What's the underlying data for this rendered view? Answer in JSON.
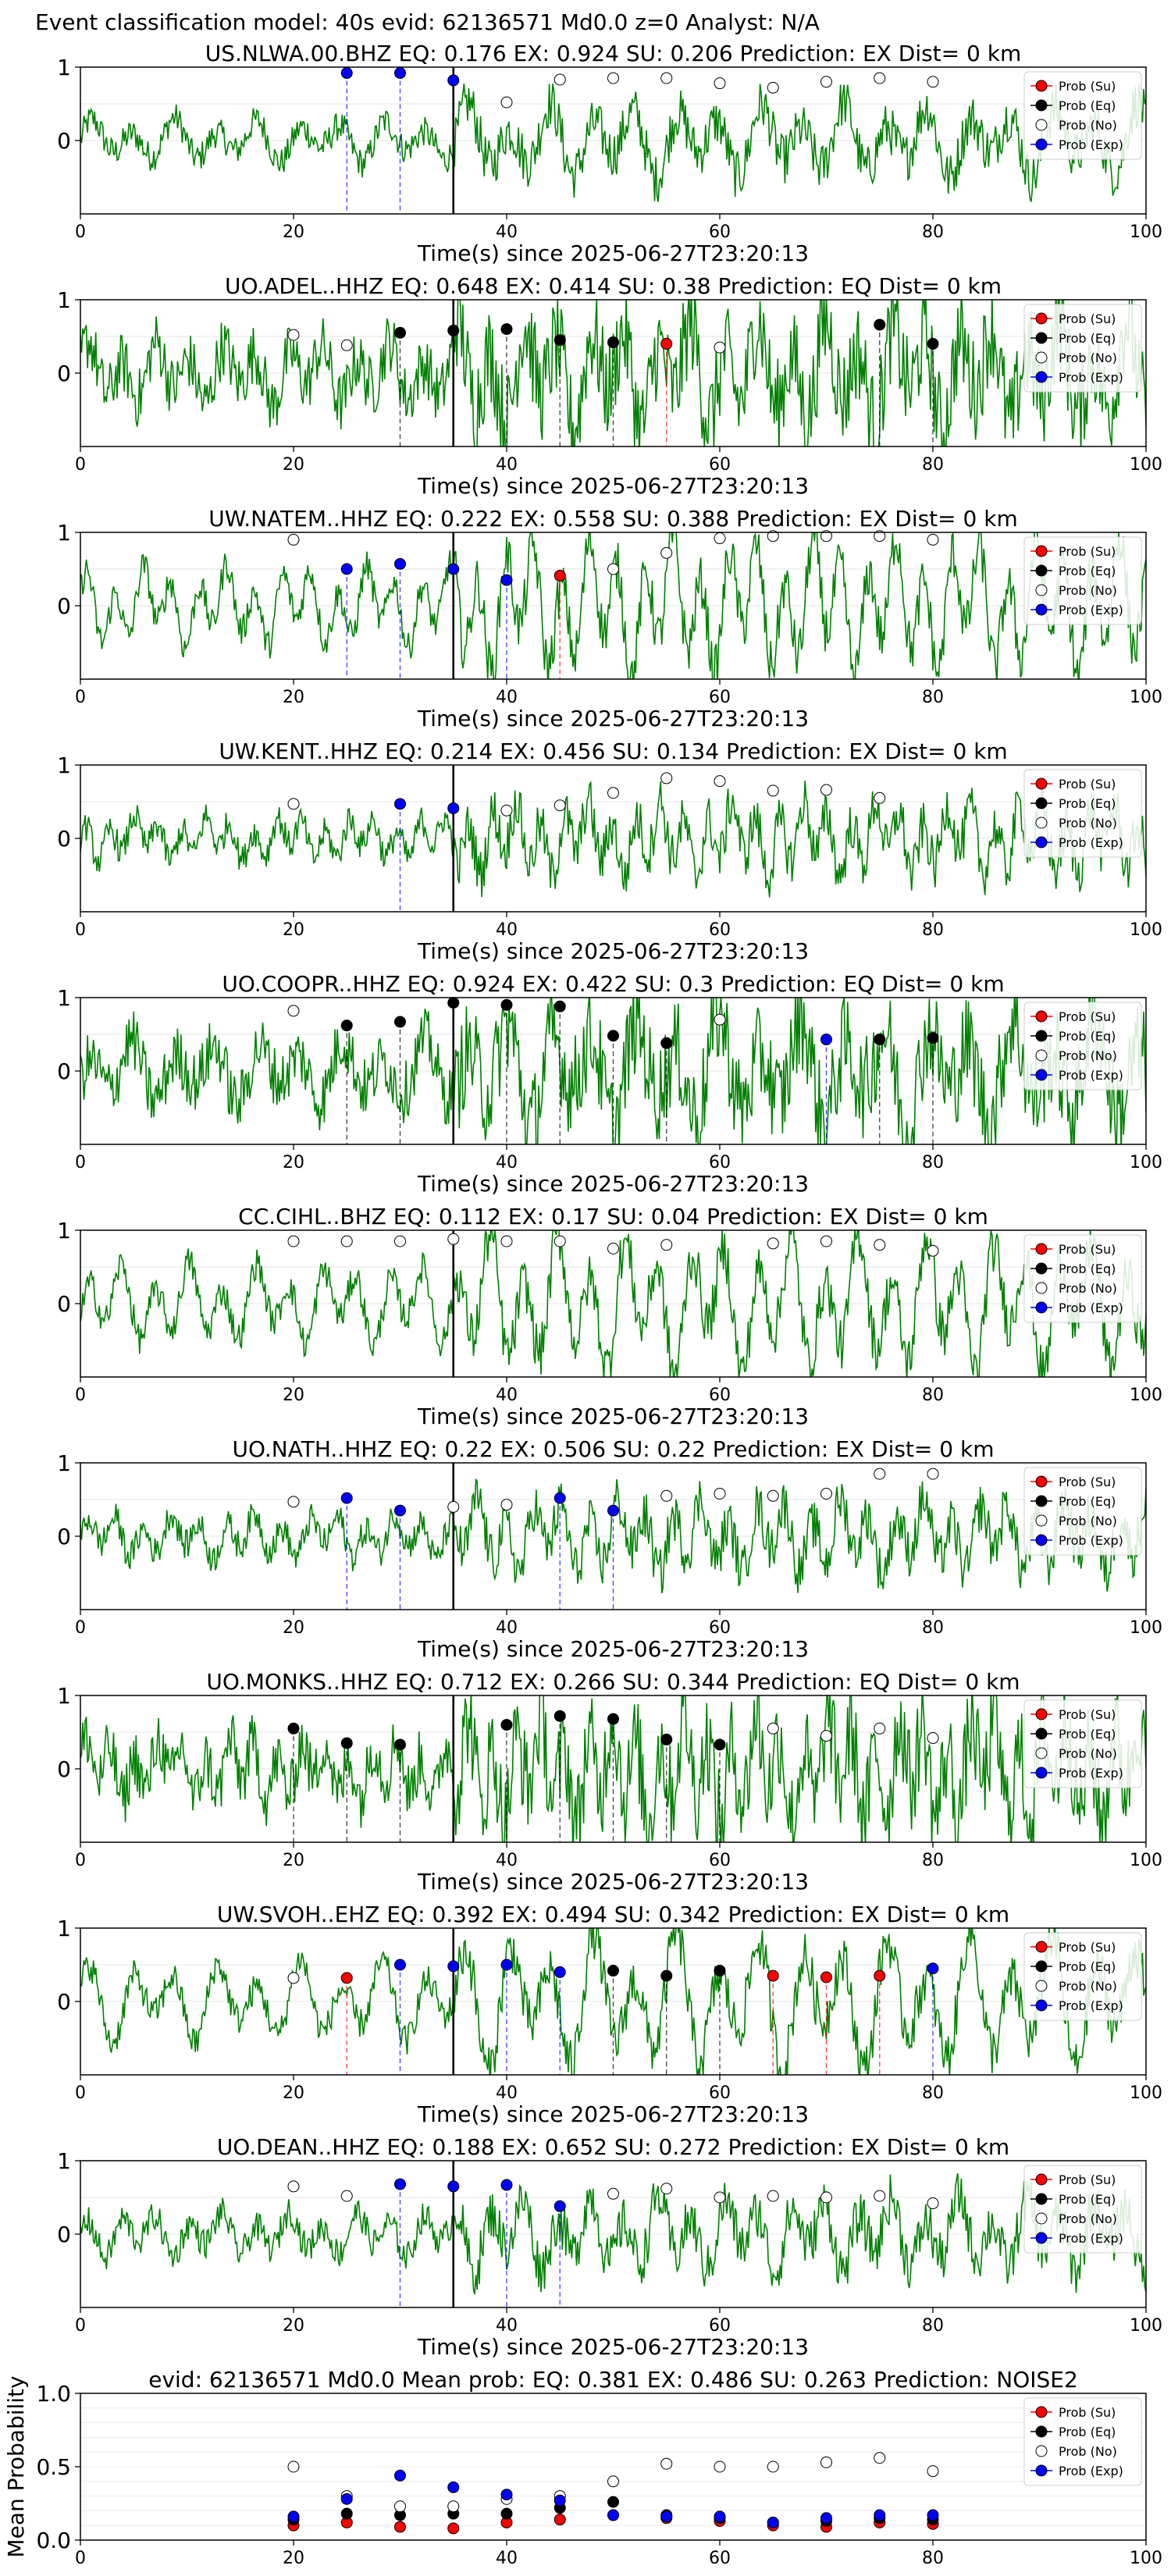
{
  "suptitle": "Event classification model: 40s evid: 62136571 Md0.0 z=0 Analyst: N/A",
  "colors": {
    "waveform": "#008000",
    "su": "#ff0000",
    "eq": "#000000",
    "no": "#ffffff",
    "exp": "#0000ff",
    "pick_line": "#000000"
  },
  "legend_labels": [
    "Prob (Su)",
    "Prob (Eq)",
    "Prob (No)",
    "Prob (Exp)"
  ],
  "xlabel": "Time(s) since 2025-06-27T23:20:13",
  "chart_data": [
    {
      "type": "scatter",
      "title": "US.NLWA.00.BHZ   EQ: 0.176   EX: 0.924   SU: 0.206   Prediction: EX    Dist= 0 km",
      "xlabel": "Time(s) since 2025-06-27T23:20:13",
      "xlim": [
        0,
        100
      ],
      "ylim": [
        -1,
        1
      ],
      "xticks": [
        0,
        20,
        40,
        60,
        80,
        100
      ],
      "yticks": [
        0,
        1
      ],
      "pick_time": 35,
      "legend": "upper right",
      "points": [
        {
          "x": 25,
          "y": 0.92,
          "cls": "exp"
        },
        {
          "x": 30,
          "y": 0.92,
          "cls": "exp"
        },
        {
          "x": 35,
          "y": 0.82,
          "cls": "exp"
        },
        {
          "x": 40,
          "y": 0.52,
          "cls": "no"
        },
        {
          "x": 45,
          "y": 0.83,
          "cls": "no"
        },
        {
          "x": 50,
          "y": 0.85,
          "cls": "no"
        },
        {
          "x": 55,
          "y": 0.85,
          "cls": "no"
        },
        {
          "x": 60,
          "y": 0.78,
          "cls": "no"
        },
        {
          "x": 65,
          "y": 0.72,
          "cls": "no"
        },
        {
          "x": 70,
          "y": 0.8,
          "cls": "no"
        },
        {
          "x": 75,
          "y": 0.85,
          "cls": "no"
        },
        {
          "x": 80,
          "y": 0.8,
          "cls": "no"
        }
      ]
    },
    {
      "type": "scatter",
      "title": "UO.ADEL..HHZ   EQ: 0.648   EX: 0.414   SU: 0.38   Prediction: EQ    Dist= 0 km",
      "xlabel": "Time(s) since 2025-06-27T23:20:13",
      "xlim": [
        0,
        100
      ],
      "ylim": [
        -1,
        1
      ],
      "xticks": [
        0,
        20,
        40,
        60,
        80,
        100
      ],
      "yticks": [
        0,
        1
      ],
      "pick_time": 35,
      "legend": "upper right",
      "points": [
        {
          "x": 20,
          "y": 0.52,
          "cls": "no"
        },
        {
          "x": 25,
          "y": 0.38,
          "cls": "no"
        },
        {
          "x": 30,
          "y": 0.55,
          "cls": "eq"
        },
        {
          "x": 35,
          "y": 0.58,
          "cls": "eq"
        },
        {
          "x": 40,
          "y": 0.6,
          "cls": "eq"
        },
        {
          "x": 45,
          "y": 0.45,
          "cls": "eq"
        },
        {
          "x": 50,
          "y": 0.42,
          "cls": "eq"
        },
        {
          "x": 55,
          "y": 0.4,
          "cls": "su"
        },
        {
          "x": 60,
          "y": 0.35,
          "cls": "no"
        },
        {
          "x": 75,
          "y": 0.66,
          "cls": "eq"
        },
        {
          "x": 80,
          "y": 0.4,
          "cls": "eq"
        }
      ]
    },
    {
      "type": "scatter",
      "title": "UW.NATEM..HHZ   EQ: 0.222   EX: 0.558   SU: 0.388   Prediction: EX    Dist= 0 km",
      "xlabel": "Time(s) since 2025-06-27T23:20:13",
      "xlim": [
        0,
        100
      ],
      "ylim": [
        -1,
        1
      ],
      "xticks": [
        0,
        20,
        40,
        60,
        80,
        100
      ],
      "yticks": [
        0,
        1
      ],
      "pick_time": 35,
      "legend": "upper right",
      "points": [
        {
          "x": 20,
          "y": 0.9,
          "cls": "no"
        },
        {
          "x": 25,
          "y": 0.5,
          "cls": "exp"
        },
        {
          "x": 30,
          "y": 0.57,
          "cls": "exp"
        },
        {
          "x": 35,
          "y": 0.5,
          "cls": "exp"
        },
        {
          "x": 40,
          "y": 0.35,
          "cls": "exp"
        },
        {
          "x": 45,
          "y": 0.41,
          "cls": "su"
        },
        {
          "x": 50,
          "y": 0.5,
          "cls": "no"
        },
        {
          "x": 55,
          "y": 0.72,
          "cls": "no"
        },
        {
          "x": 60,
          "y": 0.92,
          "cls": "no"
        },
        {
          "x": 65,
          "y": 0.95,
          "cls": "no"
        },
        {
          "x": 70,
          "y": 0.95,
          "cls": "no"
        },
        {
          "x": 75,
          "y": 0.95,
          "cls": "no"
        },
        {
          "x": 80,
          "y": 0.9,
          "cls": "no"
        }
      ]
    },
    {
      "type": "scatter",
      "title": "UW.KENT..HHZ   EQ: 0.214   EX: 0.456   SU: 0.134   Prediction: EX    Dist= 0 km",
      "xlabel": "Time(s) since 2025-06-27T23:20:13",
      "xlim": [
        0,
        100
      ],
      "ylim": [
        -1,
        1
      ],
      "xticks": [
        0,
        20,
        40,
        60,
        80,
        100
      ],
      "yticks": [
        0,
        1
      ],
      "pick_time": 35,
      "legend": "upper right",
      "points": [
        {
          "x": 20,
          "y": 0.47,
          "cls": "no"
        },
        {
          "x": 30,
          "y": 0.47,
          "cls": "exp"
        },
        {
          "x": 35,
          "y": 0.41,
          "cls": "exp"
        },
        {
          "x": 40,
          "y": 0.38,
          "cls": "no"
        },
        {
          "x": 45,
          "y": 0.45,
          "cls": "no"
        },
        {
          "x": 50,
          "y": 0.62,
          "cls": "no"
        },
        {
          "x": 55,
          "y": 0.82,
          "cls": "no"
        },
        {
          "x": 60,
          "y": 0.78,
          "cls": "no"
        },
        {
          "x": 65,
          "y": 0.65,
          "cls": "no"
        },
        {
          "x": 70,
          "y": 0.66,
          "cls": "no"
        },
        {
          "x": 75,
          "y": 0.55,
          "cls": "no"
        }
      ]
    },
    {
      "type": "scatter",
      "title": "UO.COOPR..HHZ   EQ: 0.924   EX: 0.422   SU: 0.3   Prediction: EQ    Dist= 0 km",
      "xlabel": "Time(s) since 2025-06-27T23:20:13",
      "xlim": [
        0,
        100
      ],
      "ylim": [
        -1,
        1
      ],
      "xticks": [
        0,
        20,
        40,
        60,
        80,
        100
      ],
      "yticks": [
        0,
        1
      ],
      "pick_time": 35,
      "legend": "upper right",
      "points": [
        {
          "x": 20,
          "y": 0.82,
          "cls": "no"
        },
        {
          "x": 25,
          "y": 0.62,
          "cls": "eq"
        },
        {
          "x": 30,
          "y": 0.67,
          "cls": "eq"
        },
        {
          "x": 35,
          "y": 0.93,
          "cls": "eq"
        },
        {
          "x": 40,
          "y": 0.9,
          "cls": "eq"
        },
        {
          "x": 45,
          "y": 0.88,
          "cls": "eq"
        },
        {
          "x": 50,
          "y": 0.48,
          "cls": "eq"
        },
        {
          "x": 55,
          "y": 0.38,
          "cls": "eq"
        },
        {
          "x": 60,
          "y": 0.7,
          "cls": "no"
        },
        {
          "x": 70,
          "y": 0.43,
          "cls": "exp"
        },
        {
          "x": 75,
          "y": 0.43,
          "cls": "eq"
        },
        {
          "x": 80,
          "y": 0.45,
          "cls": "eq"
        }
      ]
    },
    {
      "type": "scatter",
      "title": "CC.CIHL..BHZ   EQ: 0.112   EX: 0.17   SU: 0.04   Prediction: EX    Dist= 0 km",
      "xlabel": "Time(s) since 2025-06-27T23:20:13",
      "xlim": [
        0,
        100
      ],
      "ylim": [
        -1,
        1
      ],
      "xticks": [
        0,
        20,
        40,
        60,
        80,
        100
      ],
      "yticks": [
        0,
        1
      ],
      "pick_time": 35,
      "legend": "upper right",
      "points": [
        {
          "x": 20,
          "y": 0.85,
          "cls": "no"
        },
        {
          "x": 25,
          "y": 0.85,
          "cls": "no"
        },
        {
          "x": 30,
          "y": 0.85,
          "cls": "no"
        },
        {
          "x": 35,
          "y": 0.88,
          "cls": "no"
        },
        {
          "x": 40,
          "y": 0.85,
          "cls": "no"
        },
        {
          "x": 45,
          "y": 0.85,
          "cls": "no"
        },
        {
          "x": 50,
          "y": 0.75,
          "cls": "no"
        },
        {
          "x": 55,
          "y": 0.8,
          "cls": "no"
        },
        {
          "x": 65,
          "y": 0.82,
          "cls": "no"
        },
        {
          "x": 70,
          "y": 0.85,
          "cls": "no"
        },
        {
          "x": 75,
          "y": 0.8,
          "cls": "no"
        },
        {
          "x": 80,
          "y": 0.72,
          "cls": "no"
        }
      ]
    },
    {
      "type": "scatter",
      "title": "UO.NATH..HHZ   EQ: 0.22   EX: 0.506   SU: 0.22   Prediction: EX    Dist= 0 km",
      "xlabel": "Time(s) since 2025-06-27T23:20:13",
      "xlim": [
        0,
        100
      ],
      "ylim": [
        -1,
        1
      ],
      "xticks": [
        0,
        20,
        40,
        60,
        80,
        100
      ],
      "yticks": [
        0,
        1
      ],
      "pick_time": 35,
      "legend": "upper right",
      "points": [
        {
          "x": 20,
          "y": 0.47,
          "cls": "no"
        },
        {
          "x": 25,
          "y": 0.52,
          "cls": "exp"
        },
        {
          "x": 30,
          "y": 0.35,
          "cls": "exp"
        },
        {
          "x": 35,
          "y": 0.4,
          "cls": "no"
        },
        {
          "x": 40,
          "y": 0.43,
          "cls": "no"
        },
        {
          "x": 45,
          "y": 0.52,
          "cls": "exp"
        },
        {
          "x": 50,
          "y": 0.35,
          "cls": "exp"
        },
        {
          "x": 55,
          "y": 0.55,
          "cls": "no"
        },
        {
          "x": 60,
          "y": 0.58,
          "cls": "no"
        },
        {
          "x": 65,
          "y": 0.55,
          "cls": "no"
        },
        {
          "x": 70,
          "y": 0.58,
          "cls": "no"
        },
        {
          "x": 75,
          "y": 0.85,
          "cls": "no"
        },
        {
          "x": 80,
          "y": 0.85,
          "cls": "no"
        }
      ]
    },
    {
      "type": "scatter",
      "title": "UO.MONKS..HHZ   EQ: 0.712   EX: 0.266   SU: 0.344   Prediction: EQ    Dist= 0 km",
      "xlabel": "Time(s) since 2025-06-27T23:20:13",
      "xlim": [
        0,
        100
      ],
      "ylim": [
        -1,
        1
      ],
      "xticks": [
        0,
        20,
        40,
        60,
        80,
        100
      ],
      "yticks": [
        0,
        1
      ],
      "pick_time": 35,
      "legend": "upper right",
      "points": [
        {
          "x": 20,
          "y": 0.55,
          "cls": "eq"
        },
        {
          "x": 25,
          "y": 0.35,
          "cls": "eq"
        },
        {
          "x": 30,
          "y": 0.33,
          "cls": "eq"
        },
        {
          "x": 40,
          "y": 0.6,
          "cls": "eq"
        },
        {
          "x": 45,
          "y": 0.72,
          "cls": "eq"
        },
        {
          "x": 50,
          "y": 0.68,
          "cls": "eq"
        },
        {
          "x": 55,
          "y": 0.4,
          "cls": "eq"
        },
        {
          "x": 60,
          "y": 0.33,
          "cls": "eq"
        },
        {
          "x": 65,
          "y": 0.55,
          "cls": "no"
        },
        {
          "x": 70,
          "y": 0.45,
          "cls": "no"
        },
        {
          "x": 75,
          "y": 0.55,
          "cls": "no"
        },
        {
          "x": 80,
          "y": 0.42,
          "cls": "no"
        }
      ]
    },
    {
      "type": "scatter",
      "title": "UW.SVOH..EHZ   EQ: 0.392   EX: 0.494   SU: 0.342   Prediction: EX    Dist= 0 km",
      "xlabel": "Time(s) since 2025-06-27T23:20:13",
      "xlim": [
        0,
        100
      ],
      "ylim": [
        -1,
        1
      ],
      "xticks": [
        0,
        20,
        40,
        60,
        80,
        100
      ],
      "yticks": [
        0,
        1
      ],
      "pick_time": 35,
      "legend": "upper right",
      "points": [
        {
          "x": 20,
          "y": 0.32,
          "cls": "no"
        },
        {
          "x": 25,
          "y": 0.32,
          "cls": "su"
        },
        {
          "x": 30,
          "y": 0.5,
          "cls": "exp"
        },
        {
          "x": 35,
          "y": 0.48,
          "cls": "exp"
        },
        {
          "x": 40,
          "y": 0.5,
          "cls": "exp"
        },
        {
          "x": 45,
          "y": 0.4,
          "cls": "exp"
        },
        {
          "x": 50,
          "y": 0.42,
          "cls": "eq"
        },
        {
          "x": 55,
          "y": 0.35,
          "cls": "eq"
        },
        {
          "x": 60,
          "y": 0.42,
          "cls": "eq"
        },
        {
          "x": 65,
          "y": 0.35,
          "cls": "su"
        },
        {
          "x": 70,
          "y": 0.33,
          "cls": "su"
        },
        {
          "x": 75,
          "y": 0.35,
          "cls": "su"
        },
        {
          "x": 80,
          "y": 0.45,
          "cls": "exp"
        }
      ]
    },
    {
      "type": "scatter",
      "title": "UO.DEAN..HHZ   EQ: 0.188   EX: 0.652   SU: 0.272   Prediction: EX    Dist= 0 km",
      "xlabel": "Time(s) since 2025-06-27T23:20:13",
      "xlim": [
        0,
        100
      ],
      "ylim": [
        -1,
        1
      ],
      "xticks": [
        0,
        20,
        40,
        60,
        80,
        100
      ],
      "yticks": [
        0,
        1
      ],
      "pick_time": 35,
      "legend": "upper right",
      "points": [
        {
          "x": 20,
          "y": 0.65,
          "cls": "no"
        },
        {
          "x": 25,
          "y": 0.52,
          "cls": "no"
        },
        {
          "x": 30,
          "y": 0.68,
          "cls": "exp"
        },
        {
          "x": 35,
          "y": 0.65,
          "cls": "exp"
        },
        {
          "x": 40,
          "y": 0.67,
          "cls": "exp"
        },
        {
          "x": 45,
          "y": 0.38,
          "cls": "exp"
        },
        {
          "x": 50,
          "y": 0.55,
          "cls": "no"
        },
        {
          "x": 55,
          "y": 0.62,
          "cls": "no"
        },
        {
          "x": 60,
          "y": 0.5,
          "cls": "no"
        },
        {
          "x": 65,
          "y": 0.52,
          "cls": "no"
        },
        {
          "x": 70,
          "y": 0.5,
          "cls": "no"
        },
        {
          "x": 75,
          "y": 0.52,
          "cls": "no"
        },
        {
          "x": 80,
          "y": 0.42,
          "cls": "no"
        }
      ]
    },
    {
      "type": "scatter",
      "title": "evid: 62136571  Md0.0   Mean prob:   EQ: 0.381  EX: 0.486  SU: 0.263   Prediction: NOISE2",
      "xlabel": "",
      "ylabel": "Mean Probability",
      "xlim": [
        0,
        100
      ],
      "ylim": [
        0,
        1
      ],
      "xticks": [
        0,
        20,
        40,
        60,
        80,
        100
      ],
      "yticks": [
        0.0,
        0.5,
        1.0
      ],
      "ytick_labels": [
        "0.0",
        "0.5",
        "1.0"
      ],
      "legend": "upper right",
      "grid": true,
      "series": [
        {
          "name": "Prob (Su)",
          "cls": "su",
          "x": [
            20,
            25,
            30,
            35,
            40,
            45,
            50,
            55,
            60,
            65,
            70,
            75,
            80
          ],
          "y": [
            0.1,
            0.12,
            0.09,
            0.08,
            0.12,
            0.14,
            0.17,
            0.15,
            0.13,
            0.1,
            0.09,
            0.12,
            0.11
          ]
        },
        {
          "name": "Prob (Eq)",
          "cls": "eq",
          "x": [
            20,
            25,
            30,
            35,
            40,
            45,
            50,
            55,
            60,
            65,
            70,
            75,
            80
          ],
          "y": [
            0.14,
            0.18,
            0.17,
            0.18,
            0.18,
            0.22,
            0.26,
            0.17,
            0.15,
            0.12,
            0.13,
            0.15,
            0.14
          ]
        },
        {
          "name": "Prob (No)",
          "cls": "no",
          "x": [
            20,
            25,
            30,
            35,
            40,
            45,
            50,
            55,
            60,
            65,
            70,
            75,
            80
          ],
          "y": [
            0.5,
            0.3,
            0.23,
            0.23,
            0.28,
            0.3,
            0.4,
            0.52,
            0.5,
            0.5,
            0.53,
            0.56,
            0.47
          ]
        },
        {
          "name": "Prob (Exp)",
          "cls": "exp",
          "x": [
            20,
            25,
            30,
            35,
            40,
            45,
            50,
            55,
            60,
            65,
            70,
            75,
            80
          ],
          "y": [
            0.16,
            0.28,
            0.44,
            0.36,
            0.31,
            0.27,
            0.17,
            0.16,
            0.16,
            0.12,
            0.15,
            0.17,
            0.17
          ]
        }
      ]
    }
  ]
}
